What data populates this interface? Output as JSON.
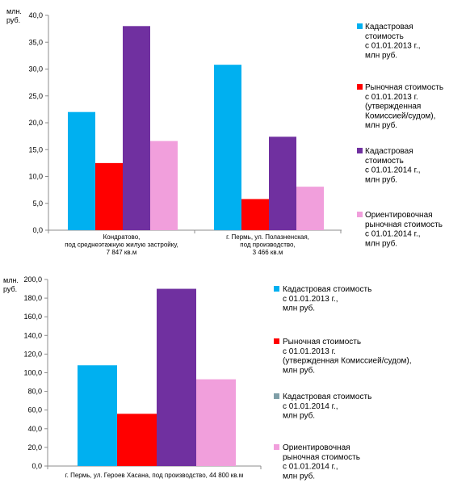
{
  "chart_data": [
    {
      "type": "bar",
      "unit_label": [
        "млн.",
        "руб."
      ],
      "ylim": [
        0,
        40
      ],
      "yticks": [
        "0,0",
        "5,0",
        "10,0",
        "15,0",
        "20,0",
        "25,0",
        "30,0",
        "35,0",
        "40,0"
      ],
      "categories": [
        [
          "Кондратово,",
          "под среднеэтажную жилую застройку,",
          "7 847 кв.м"
        ],
        [
          "г. Пермь, ул. Полазненская,",
          "под производство,",
          "3 466 кв.м"
        ]
      ],
      "series": [
        {
          "name": [
            "Кадастровая",
            "стоимость",
            "с 01.01.2013 г.,",
            "млн руб."
          ],
          "color": "#00b0f0",
          "values": [
            22.0,
            30.8
          ]
        },
        {
          "name": [
            "Рыночная стоимость",
            "с 01.01.2013 г.",
            "(утвержденная",
            "Комиссией/судом),",
            "млн руб."
          ],
          "color": "#ff0000",
          "values": [
            12.5,
            5.8
          ]
        },
        {
          "name": [
            "Кадастровая",
            "стоимость",
            "с 01.01.2014 г.,",
            "млн руб."
          ],
          "color": "#7030a0",
          "values": [
            38.0,
            17.4
          ]
        },
        {
          "name": [
            "Ориентировочная",
            "рыночная стоимость",
            "с 01.01.2014 г.,",
            "млн руб."
          ],
          "color": "#f19fdc",
          "values": [
            16.6,
            8.1
          ]
        }
      ],
      "grid": false,
      "legend_position": "right"
    },
    {
      "type": "bar",
      "unit_label": [
        "млн.",
        "руб."
      ],
      "ylim": [
        0,
        200
      ],
      "yticks": [
        "0,0",
        "20,0",
        "40,0",
        "60,0",
        "80,0",
        "100,0",
        "120,0",
        "140,0",
        "160,0",
        "180,0",
        "200,0"
      ],
      "categories": [
        [
          "г. Пермь, ул. Героев Хасана, под производство, 44 800 кв.м"
        ]
      ],
      "series": [
        {
          "name": [
            "Кадастровая стоимость",
            "с 01.01.2013 г.,",
            "млн руб."
          ],
          "color": "#00b0f0",
          "values": [
            108.0
          ]
        },
        {
          "name": [
            "Рыночная стоимость",
            "с 01.01.2013 г.",
            "(утвержденная Комиссией/судом),",
            "млн руб."
          ],
          "color": "#ff0000",
          "values": [
            56.0
          ]
        },
        {
          "name": [
            "Кадастровая стоимость",
            "с 01.01.2014 г.,",
            "млн руб."
          ],
          "color": "#7030a0",
          "legend_color": "#7f9fa8",
          "values": [
            190.0
          ]
        },
        {
          "name": [
            "Ориентировочная",
            "рыночная стоимость",
            "с 01.01.2014 г.,",
            "млн руб."
          ],
          "color": "#f19fdc",
          "values": [
            93.0
          ]
        }
      ],
      "grid": false,
      "legend_position": "right"
    }
  ]
}
